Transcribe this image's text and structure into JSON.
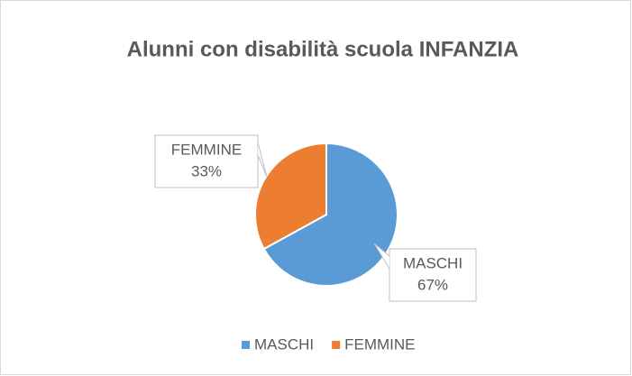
{
  "chart_data": {
    "type": "pie",
    "title": "Alunni con disabilità scuola INFANZIA",
    "categories": [
      "MASCHI",
      "FEMMINE"
    ],
    "values": [
      67,
      33
    ],
    "value_labels": [
      "67%",
      "33%"
    ],
    "colors": [
      "#5b9bd5",
      "#ed7d31"
    ],
    "legend": "bottom"
  }
}
